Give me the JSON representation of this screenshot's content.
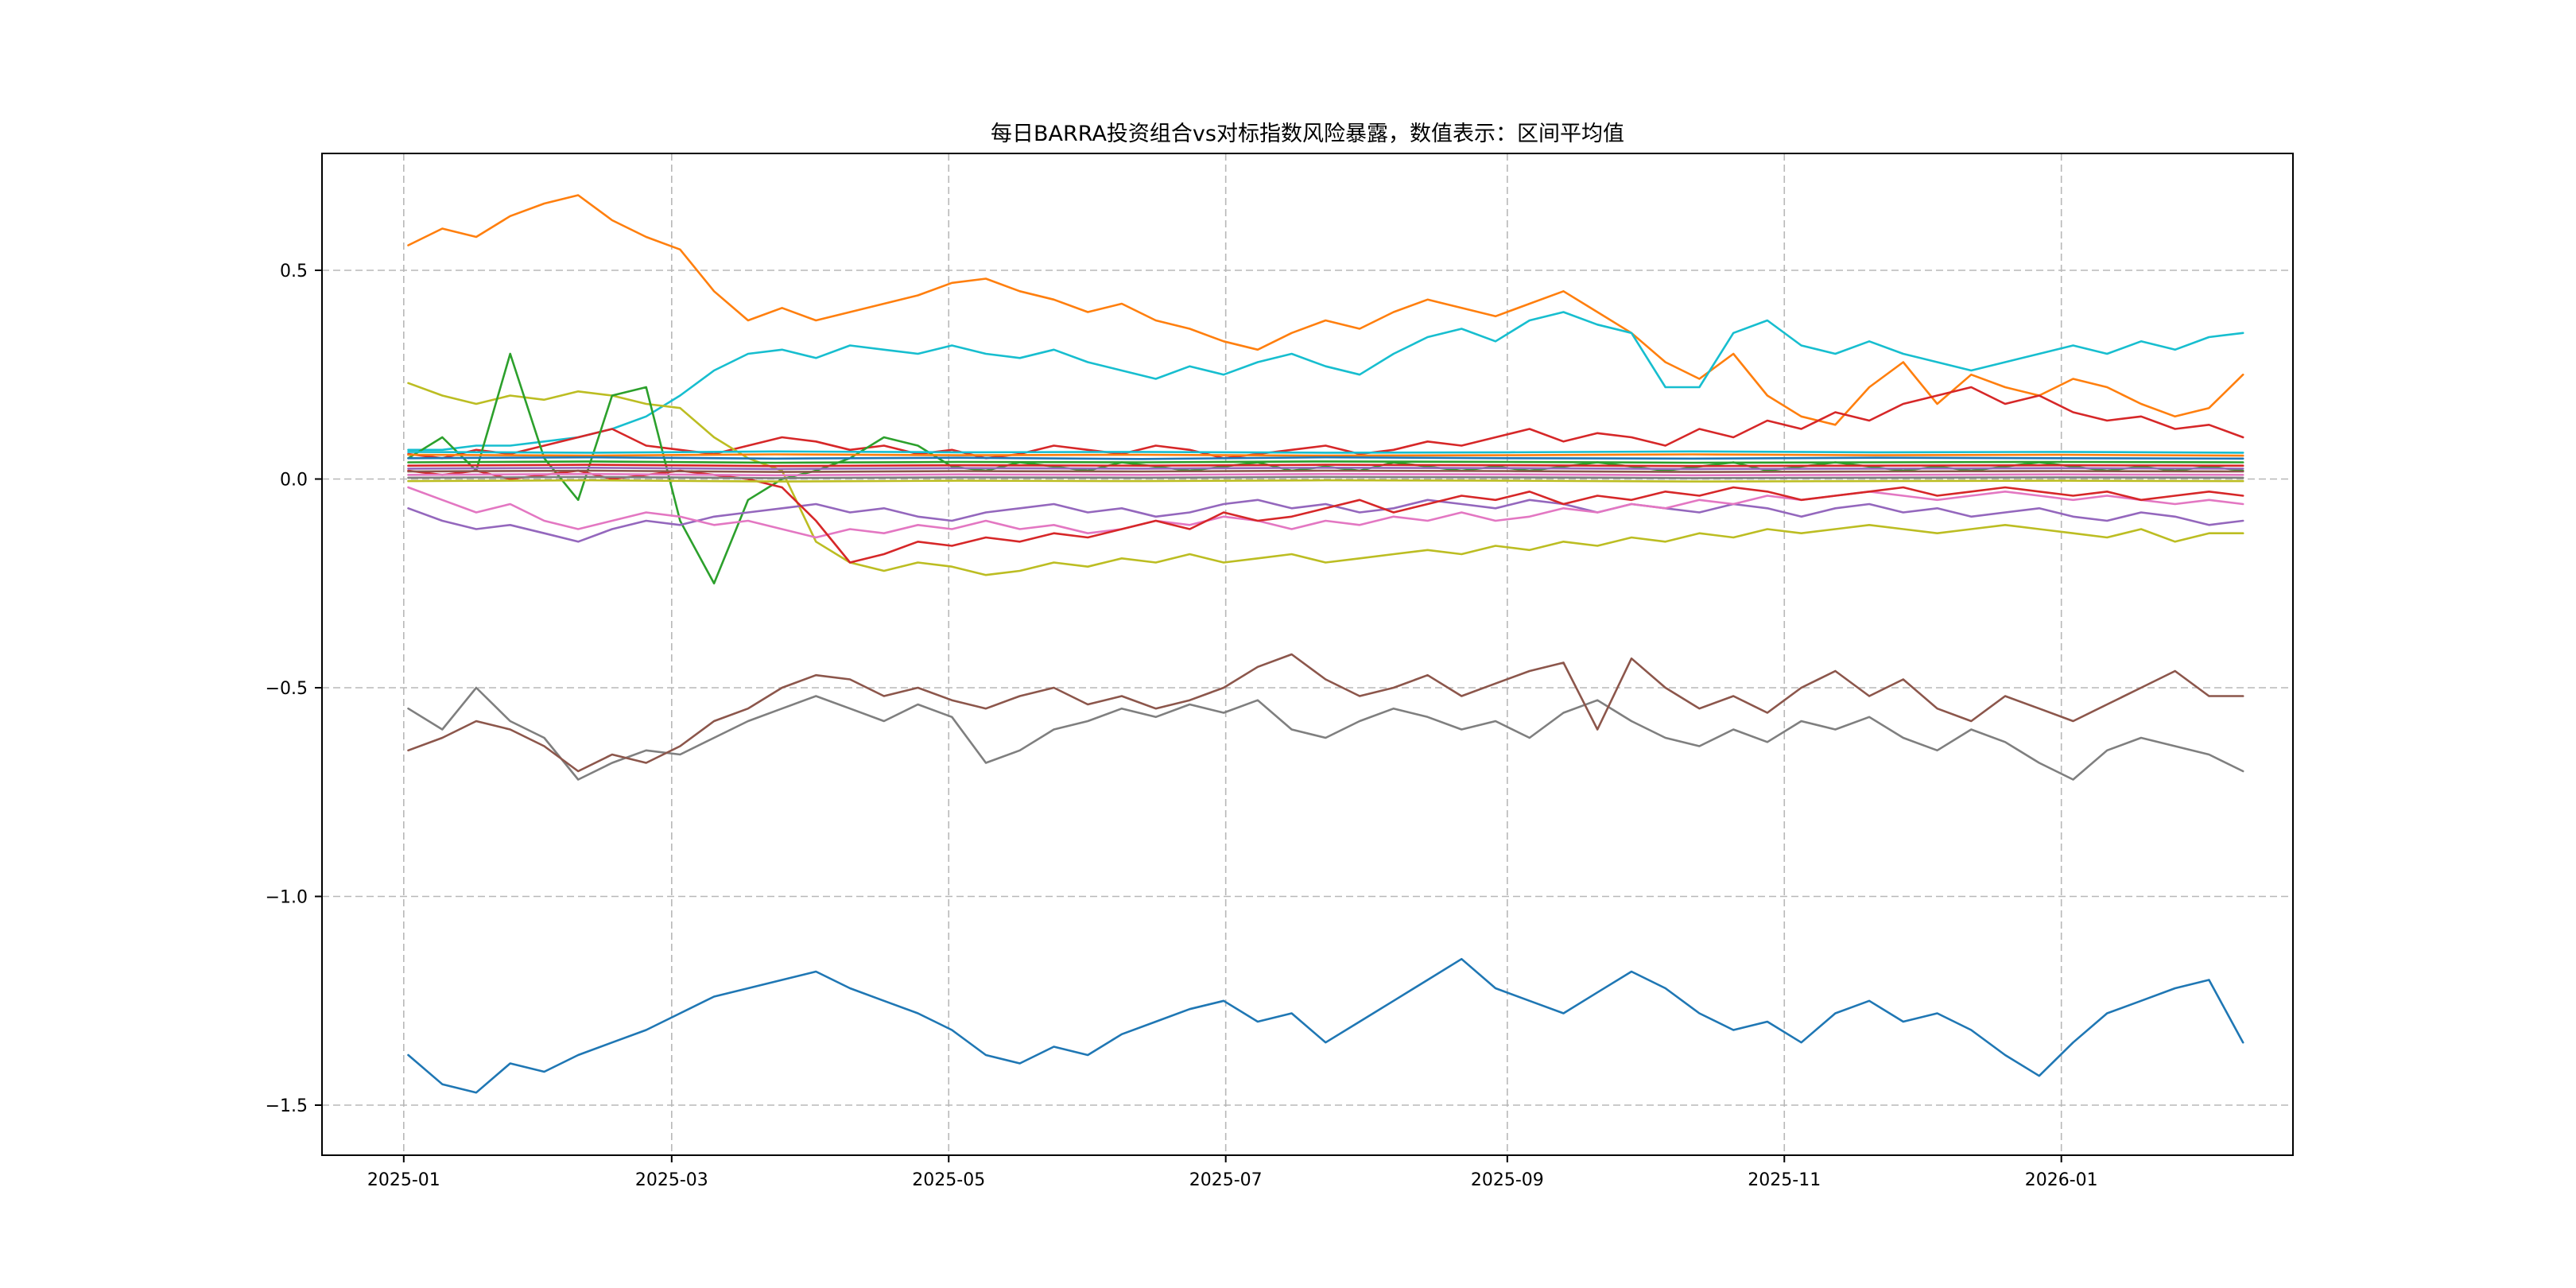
{
  "figure": {
    "background": "#ffffff"
  },
  "chart_data": {
    "type": "line",
    "title": "每日BARRA投资组合vs对标指数风险暴露，数值表示：区间平均值",
    "xlabel": "",
    "ylabel": "",
    "legend": "none",
    "grid": true,
    "x_unit": "days since 2025-01-01",
    "xlim": [
      -18,
      416
    ],
    "ylim": [
      -1.62,
      0.78
    ],
    "x_ticks": [
      {
        "label": "2025-01",
        "day": 0
      },
      {
        "label": "2025-03",
        "day": 59
      },
      {
        "label": "2025-05",
        "day": 120
      },
      {
        "label": "2025-07",
        "day": 181
      },
      {
        "label": "2025-09",
        "day": 243
      },
      {
        "label": "2025-11",
        "day": 304
      },
      {
        "label": "2026-01",
        "day": 365
      }
    ],
    "y_ticks": [
      {
        "label": "0.5",
        "value": 0.5
      },
      {
        "label": "0.0",
        "value": 0.0
      },
      {
        "label": "−0.5",
        "value": -0.5
      },
      {
        "label": "−1.0",
        "value": -1.0
      },
      {
        "label": "−1.5",
        "value": -1.5
      }
    ],
    "series": [
      {
        "name": "orange-upper",
        "color": "#ff7f0e",
        "x_start": 1,
        "x_end": 405,
        "values": [
          0.56,
          0.6,
          0.58,
          0.63,
          0.66,
          0.68,
          0.62,
          0.58,
          0.55,
          0.45,
          0.38,
          0.41,
          0.38,
          0.4,
          0.42,
          0.44,
          0.47,
          0.48,
          0.45,
          0.43,
          0.4,
          0.42,
          0.38,
          0.36,
          0.33,
          0.31,
          0.35,
          0.38,
          0.36,
          0.4,
          0.43,
          0.41,
          0.39,
          0.42,
          0.45,
          0.4,
          0.35,
          0.28,
          0.24,
          0.3,
          0.2,
          0.15,
          0.13,
          0.22,
          0.28,
          0.18,
          0.25,
          0.22,
          0.2,
          0.24,
          0.22,
          0.18,
          0.15,
          0.17,
          0.25
        ]
      },
      {
        "name": "cyan-upper",
        "color": "#17becf",
        "x_start": 1,
        "x_end": 405,
        "values": [
          0.07,
          0.07,
          0.08,
          0.08,
          0.09,
          0.1,
          0.12,
          0.15,
          0.2,
          0.26,
          0.3,
          0.31,
          0.29,
          0.32,
          0.31,
          0.3,
          0.32,
          0.3,
          0.29,
          0.31,
          0.28,
          0.26,
          0.24,
          0.27,
          0.25,
          0.28,
          0.3,
          0.27,
          0.25,
          0.3,
          0.34,
          0.36,
          0.33,
          0.38,
          0.4,
          0.37,
          0.35,
          0.22,
          0.22,
          0.35,
          0.38,
          0.32,
          0.3,
          0.33,
          0.3,
          0.28,
          0.26,
          0.28,
          0.3,
          0.32,
          0.3,
          0.33,
          0.31,
          0.34,
          0.35
        ]
      },
      {
        "name": "darkred-rising",
        "color": "#d62728",
        "x_start": 1,
        "x_end": 405,
        "values": [
          0.06,
          0.05,
          0.07,
          0.06,
          0.08,
          0.1,
          0.12,
          0.08,
          0.07,
          0.06,
          0.08,
          0.1,
          0.09,
          0.07,
          0.08,
          0.06,
          0.07,
          0.05,
          0.06,
          0.08,
          0.07,
          0.06,
          0.08,
          0.07,
          0.05,
          0.06,
          0.07,
          0.08,
          0.06,
          0.07,
          0.09,
          0.08,
          0.1,
          0.12,
          0.09,
          0.11,
          0.1,
          0.08,
          0.12,
          0.1,
          0.14,
          0.12,
          0.16,
          0.14,
          0.18,
          0.2,
          0.22,
          0.18,
          0.2,
          0.16,
          0.14,
          0.15,
          0.12,
          0.13,
          0.1
        ]
      },
      {
        "name": "olive-mid",
        "color": "#bcbd22",
        "x_start": 1,
        "x_end": 405,
        "values": [
          0.23,
          0.2,
          0.18,
          0.2,
          0.19,
          0.21,
          0.2,
          0.18,
          0.17,
          0.1,
          0.05,
          0.02,
          -0.15,
          -0.2,
          -0.22,
          -0.2,
          -0.21,
          -0.23,
          -0.22,
          -0.2,
          -0.21,
          -0.19,
          -0.2,
          -0.18,
          -0.2,
          -0.19,
          -0.18,
          -0.2,
          -0.19,
          -0.18,
          -0.17,
          -0.18,
          -0.16,
          -0.17,
          -0.15,
          -0.16,
          -0.14,
          -0.15,
          -0.13,
          -0.14,
          -0.12,
          -0.13,
          -0.12,
          -0.11,
          -0.12,
          -0.13,
          -0.12,
          -0.11,
          -0.12,
          -0.13,
          -0.14,
          -0.12,
          -0.15,
          -0.13,
          -0.13
        ]
      },
      {
        "name": "green-volatile",
        "color": "#2ca02c",
        "x_start": 1,
        "x_end": 405,
        "values": [
          0.05,
          0.1,
          0.02,
          0.3,
          0.05,
          -0.05,
          0.2,
          0.22,
          -0.1,
          -0.25,
          -0.05,
          0.0,
          0.02,
          0.05,
          0.1,
          0.08,
          0.03,
          0.02,
          0.04,
          0.03,
          0.02,
          0.04,
          0.03,
          0.02,
          0.03,
          0.04,
          0.02,
          0.03,
          0.02,
          0.04,
          0.03,
          0.02,
          0.03,
          0.02,
          0.03,
          0.04,
          0.03,
          0.02,
          0.03,
          0.04,
          0.02,
          0.03,
          0.04,
          0.03,
          0.02,
          0.03,
          0.02,
          0.03,
          0.04,
          0.03,
          0.02,
          0.03,
          0.02,
          0.03,
          0.02
        ]
      },
      {
        "name": "purple-mid",
        "color": "#9467bd",
        "x_start": 1,
        "x_end": 405,
        "values": [
          -0.07,
          -0.1,
          -0.12,
          -0.11,
          -0.13,
          -0.15,
          -0.12,
          -0.1,
          -0.11,
          -0.09,
          -0.08,
          -0.07,
          -0.06,
          -0.08,
          -0.07,
          -0.09,
          -0.1,
          -0.08,
          -0.07,
          -0.06,
          -0.08,
          -0.07,
          -0.09,
          -0.08,
          -0.06,
          -0.05,
          -0.07,
          -0.06,
          -0.08,
          -0.07,
          -0.05,
          -0.06,
          -0.07,
          -0.05,
          -0.06,
          -0.08,
          -0.06,
          -0.07,
          -0.08,
          -0.06,
          -0.07,
          -0.09,
          -0.07,
          -0.06,
          -0.08,
          -0.07,
          -0.09,
          -0.08,
          -0.07,
          -0.09,
          -0.1,
          -0.08,
          -0.09,
          -0.11,
          -0.1
        ]
      },
      {
        "name": "pink-mid",
        "color": "#e377c2",
        "x_start": 1,
        "x_end": 405,
        "values": [
          -0.02,
          -0.05,
          -0.08,
          -0.06,
          -0.1,
          -0.12,
          -0.1,
          -0.08,
          -0.09,
          -0.11,
          -0.1,
          -0.12,
          -0.14,
          -0.12,
          -0.13,
          -0.11,
          -0.12,
          -0.1,
          -0.12,
          -0.11,
          -0.13,
          -0.12,
          -0.1,
          -0.11,
          -0.09,
          -0.1,
          -0.12,
          -0.1,
          -0.11,
          -0.09,
          -0.1,
          -0.08,
          -0.1,
          -0.09,
          -0.07,
          -0.08,
          -0.06,
          -0.07,
          -0.05,
          -0.06,
          -0.04,
          -0.05,
          -0.04,
          -0.03,
          -0.04,
          -0.05,
          -0.04,
          -0.03,
          -0.04,
          -0.05,
          -0.04,
          -0.05,
          -0.06,
          -0.05,
          -0.06
        ]
      },
      {
        "name": "red-mid",
        "color": "#d62728",
        "x_start": 1,
        "x_end": 405,
        "values": [
          0.02,
          0.01,
          0.02,
          0.0,
          0.01,
          0.02,
          0.0,
          0.01,
          0.02,
          0.01,
          0.0,
          -0.02,
          -0.1,
          -0.2,
          -0.18,
          -0.15,
          -0.16,
          -0.14,
          -0.15,
          -0.13,
          -0.14,
          -0.12,
          -0.1,
          -0.12,
          -0.08,
          -0.1,
          -0.09,
          -0.07,
          -0.05,
          -0.08,
          -0.06,
          -0.04,
          -0.05,
          -0.03,
          -0.06,
          -0.04,
          -0.05,
          -0.03,
          -0.04,
          -0.02,
          -0.03,
          -0.05,
          -0.04,
          -0.03,
          -0.02,
          -0.04,
          -0.03,
          -0.02,
          -0.03,
          -0.04,
          -0.03,
          -0.05,
          -0.04,
          -0.03,
          -0.04
        ]
      },
      {
        "name": "gray-lower",
        "color": "#7f7f7f",
        "x_start": 1,
        "x_end": 405,
        "values": [
          -0.55,
          -0.6,
          -0.5,
          -0.58,
          -0.62,
          -0.72,
          -0.68,
          -0.65,
          -0.66,
          -0.62,
          -0.58,
          -0.55,
          -0.52,
          -0.55,
          -0.58,
          -0.54,
          -0.57,
          -0.68,
          -0.65,
          -0.6,
          -0.58,
          -0.55,
          -0.57,
          -0.54,
          -0.56,
          -0.53,
          -0.6,
          -0.62,
          -0.58,
          -0.55,
          -0.57,
          -0.6,
          -0.58,
          -0.62,
          -0.56,
          -0.53,
          -0.58,
          -0.62,
          -0.64,
          -0.6,
          -0.63,
          -0.58,
          -0.6,
          -0.57,
          -0.62,
          -0.65,
          -0.6,
          -0.63,
          -0.68,
          -0.72,
          -0.65,
          -0.62,
          -0.64,
          -0.66,
          -0.7
        ]
      },
      {
        "name": "brown-lower",
        "color": "#8c564b",
        "x_start": 1,
        "x_end": 405,
        "values": [
          -0.65,
          -0.62,
          -0.58,
          -0.6,
          -0.64,
          -0.7,
          -0.66,
          -0.68,
          -0.64,
          -0.58,
          -0.55,
          -0.5,
          -0.47,
          -0.48,
          -0.52,
          -0.5,
          -0.53,
          -0.55,
          -0.52,
          -0.5,
          -0.54,
          -0.52,
          -0.55,
          -0.53,
          -0.5,
          -0.45,
          -0.42,
          -0.48,
          -0.52,
          -0.5,
          -0.47,
          -0.52,
          -0.49,
          -0.46,
          -0.44,
          -0.6,
          -0.43,
          -0.5,
          -0.55,
          -0.52,
          -0.56,
          -0.5,
          -0.46,
          -0.52,
          -0.48,
          -0.55,
          -0.58,
          -0.52,
          -0.55,
          -0.58,
          -0.54,
          -0.5,
          -0.46,
          -0.52,
          -0.52
        ]
      },
      {
        "name": "blue-lower",
        "color": "#1f77b4",
        "x_start": 1,
        "x_end": 405,
        "values": [
          -1.38,
          -1.45,
          -1.47,
          -1.4,
          -1.42,
          -1.38,
          -1.35,
          -1.32,
          -1.28,
          -1.24,
          -1.22,
          -1.2,
          -1.18,
          -1.22,
          -1.25,
          -1.28,
          -1.32,
          -1.38,
          -1.4,
          -1.36,
          -1.38,
          -1.33,
          -1.3,
          -1.27,
          -1.25,
          -1.3,
          -1.28,
          -1.35,
          -1.3,
          -1.25,
          -1.2,
          -1.15,
          -1.22,
          -1.25,
          -1.28,
          -1.23,
          -1.18,
          -1.22,
          -1.28,
          -1.32,
          -1.3,
          -1.35,
          -1.28,
          -1.25,
          -1.3,
          -1.28,
          -1.32,
          -1.38,
          -1.43,
          -1.35,
          -1.28,
          -1.25,
          -1.22,
          -1.2,
          -1.35
        ]
      },
      {
        "name": "cluster-cyan",
        "color": "#17becf",
        "x_start": 1,
        "x_end": 405,
        "values": [
          0.065,
          0.063,
          0.066,
          0.064,
          0.065,
          0.063,
          0.064,
          0.066,
          0.064,
          0.065,
          0.063
        ]
      },
      {
        "name": "cluster-orange",
        "color": "#ff7f0e",
        "x_start": 1,
        "x_end": 405,
        "values": [
          0.058,
          0.056,
          0.059,
          0.057,
          0.058,
          0.056,
          0.057,
          0.059,
          0.057,
          0.058,
          0.056
        ]
      },
      {
        "name": "cluster-blue",
        "color": "#1f77b4",
        "x_start": 1,
        "x_end": 405,
        "values": [
          0.05,
          0.052,
          0.049,
          0.051,
          0.048,
          0.052,
          0.05,
          0.049,
          0.051,
          0.05,
          0.049
        ]
      },
      {
        "name": "cluster-green",
        "color": "#2ca02c",
        "x_start": 1,
        "x_end": 405,
        "values": [
          0.04,
          0.042,
          0.039,
          0.041,
          0.04,
          0.042,
          0.041,
          0.039,
          0.04,
          0.041,
          0.04
        ]
      },
      {
        "name": "cluster-red",
        "color": "#d62728",
        "x_start": 1,
        "x_end": 405,
        "values": [
          0.032,
          0.034,
          0.031,
          0.033,
          0.032,
          0.034,
          0.033,
          0.031,
          0.032,
          0.033,
          0.032
        ]
      },
      {
        "name": "cluster-purple",
        "color": "#9467bd",
        "x_start": 1,
        "x_end": 405,
        "values": [
          0.025,
          0.027,
          0.024,
          0.026,
          0.025,
          0.027,
          0.026,
          0.024,
          0.025,
          0.026,
          0.025
        ]
      },
      {
        "name": "cluster-brown",
        "color": "#8c564b",
        "x_start": 1,
        "x_end": 405,
        "values": [
          0.018,
          0.02,
          0.017,
          0.019,
          0.018,
          0.02,
          0.019,
          0.017,
          0.018,
          0.019,
          0.018
        ]
      },
      {
        "name": "cluster-pink",
        "color": "#e377c2",
        "x_start": 1,
        "x_end": 405,
        "values": [
          0.01,
          0.012,
          0.009,
          0.011,
          0.01,
          0.012,
          0.011,
          0.009,
          0.01,
          0.011,
          0.01
        ]
      },
      {
        "name": "cluster-gray",
        "color": "#7f7f7f",
        "x_start": 1,
        "x_end": 405,
        "values": [
          0.003,
          0.005,
          0.002,
          0.004,
          0.003,
          0.005,
          0.004,
          0.002,
          0.003,
          0.004,
          0.003
        ]
      },
      {
        "name": "cluster-olive",
        "color": "#bcbd22",
        "x_start": 1,
        "x_end": 405,
        "values": [
          -0.005,
          -0.003,
          -0.006,
          -0.004,
          -0.005,
          -0.003,
          -0.004,
          -0.006,
          -0.005,
          -0.004,
          -0.005
        ]
      }
    ]
  }
}
